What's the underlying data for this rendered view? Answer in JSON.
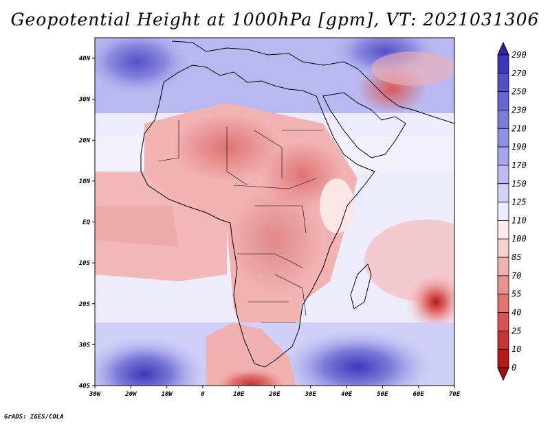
{
  "title": "Geopotential Height at 1000hPa [gpm], VT: 2021031306",
  "footer": "GrADS: IGES/COLA",
  "map": {
    "region": "Africa and surrounding oceans",
    "variable": "Geopotential Height at 1000hPa",
    "units": "gpm",
    "valid_time": "2021031306",
    "lon_ticks": [
      "30W",
      "20W",
      "10W",
      "0",
      "10E",
      "20E",
      "30E",
      "40E",
      "50E",
      "60E",
      "70E"
    ],
    "lat_ticks": [
      "40N",
      "30N",
      "20N",
      "10N",
      "EQ",
      "10S",
      "20S",
      "30S",
      "40S"
    ]
  },
  "colorbar": {
    "labels": [
      "290",
      "270",
      "250",
      "230",
      "210",
      "190",
      "170",
      "150",
      "125",
      "110",
      "100",
      "85",
      "70",
      "55",
      "40",
      "25",
      "10",
      "0"
    ],
    "colors": [
      "#2b22a8",
      "#3f37b9",
      "#5550c6",
      "#6966d0",
      "#7d7bd9",
      "#9290e2",
      "#a6a5ea",
      "#bbbaf1",
      "#d2d2f7",
      "#ececfc",
      "#fdecec",
      "#f8cfcf",
      "#f2b1b1",
      "#eb9393",
      "#e27373",
      "#d65454",
      "#c43535",
      "#b31b1b",
      "#a70f0f"
    ]
  }
}
